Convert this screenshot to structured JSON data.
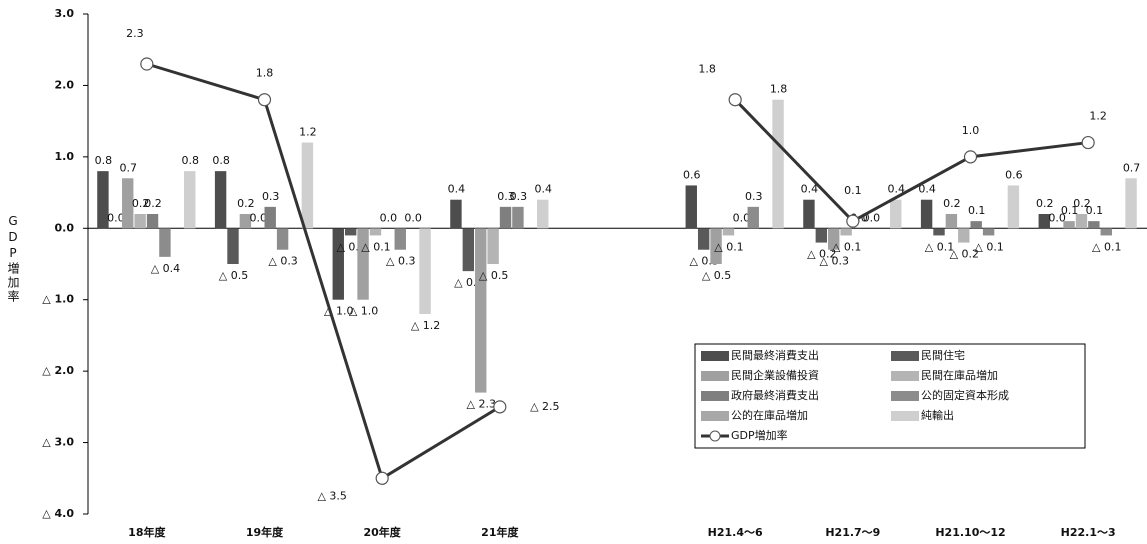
{
  "chart_data": {
    "type": "bar",
    "categories": [
      "18年度",
      "19年度",
      "20年度",
      "21年度",
      null,
      "H21.4～6",
      "H21.7～9",
      "H21.10～12",
      "H22.1～3"
    ],
    "y_label": "GDP増加率",
    "ylim": [
      -4,
      3
    ],
    "yticks": [
      {
        "value": 3,
        "label": "3.0"
      },
      {
        "value": 2,
        "label": "2.0"
      },
      {
        "value": 1,
        "label": "1.0"
      },
      {
        "value": 0,
        "label": "0.0"
      },
      {
        "value": -1,
        "label": "△ 1.0"
      },
      {
        "value": -2,
        "label": "△ 2.0"
      },
      {
        "value": -3,
        "label": "△ 3.0"
      },
      {
        "value": -4,
        "label": "△ 4.0"
      }
    ],
    "series": [
      {
        "name": "民間最終消費支出",
        "color": "#4d4d4d",
        "values": [
          0.8,
          0.8,
          -1.0,
          0.4,
          null,
          0.6,
          0.4,
          0.4,
          0.2
        ],
        "value_labels": [
          "0.8",
          "0.8",
          "△ 1.0",
          "0.4",
          null,
          "0.6",
          "0.4",
          "0.4",
          "0.2"
        ]
      },
      {
        "name": "民間住宅",
        "color": "#5a5a5a",
        "values": [
          0.0,
          -0.5,
          -0.1,
          -0.6,
          null,
          -0.3,
          -0.2,
          -0.1,
          0.0
        ],
        "value_labels": [
          "0.0",
          "△ 0.5",
          "△ 0.1",
          "△ 0.6",
          null,
          "△ 0.3",
          "△ 0.2",
          "△ 0.1",
          "0.0"
        ]
      },
      {
        "name": "民間企業設備投資",
        "color": "#a0a0a0",
        "values": [
          0.7,
          0.2,
          -1.0,
          -2.3,
          null,
          -0.5,
          -0.3,
          0.2,
          0.1
        ],
        "value_labels": [
          "0.7",
          "0.2",
          "△ 1.0",
          "△ 2.3",
          null,
          "△ 0.5",
          "△ 0.3",
          "0.2",
          "0.1"
        ]
      },
      {
        "name": "民間在庫品増加",
        "color": "#b4b4b4",
        "values": [
          0.2,
          0.0,
          -0.1,
          -0.5,
          null,
          -0.1,
          -0.1,
          -0.2,
          0.2
        ],
        "value_labels": [
          "0.2",
          "0.0",
          "△ 0.1",
          "△ 0.5",
          null,
          "△ 0.1",
          "△ 0.1",
          "△ 0.2",
          "0.2"
        ]
      },
      {
        "name": "政府最終消費支出",
        "color": "#7f7f7f",
        "values": [
          0.2,
          0.3,
          0.0,
          0.3,
          null,
          0.0,
          0.0,
          0.1,
          0.1
        ],
        "value_labels": [
          "0.2",
          "0.3",
          "0.0",
          "0.3",
          null,
          "0.0",
          "0.0",
          "0.1",
          "0.1"
        ]
      },
      {
        "name": "公的固定資本形成",
        "color": "#8c8c8c",
        "values": [
          -0.4,
          -0.3,
          -0.3,
          0.3,
          null,
          0.3,
          0.0,
          -0.1,
          -0.1
        ],
        "value_labels": [
          "△ 0.4",
          "△ 0.3",
          "△ 0.3",
          "0.3",
          null,
          "0.3",
          "0.0",
          "△ 0.1",
          "△ 0.1"
        ]
      },
      {
        "name": "公的在庫品増加",
        "color": "#a8a8a8",
        "values": [
          null,
          null,
          0.0,
          null,
          null,
          null,
          null,
          null,
          null
        ],
        "value_labels": [
          null,
          null,
          "0.0",
          null,
          null,
          null,
          null,
          null,
          null
        ]
      },
      {
        "name": "純輸出",
        "color": "#cfcfcf",
        "values": [
          0.8,
          1.2,
          -1.2,
          0.4,
          null,
          1.8,
          0.4,
          0.6,
          0.7
        ],
        "value_labels": [
          "0.8",
          "1.2",
          "△ 1.2",
          "0.4",
          null,
          "1.8",
          "0.4",
          "0.6",
          "0.7"
        ]
      },
      {
        "name": "GDP増加率",
        "type": "line",
        "color": "#333333",
        "values": [
          2.3,
          1.8,
          -3.5,
          -2.5,
          null,
          1.8,
          0.1,
          1.0,
          1.2
        ],
        "value_labels": [
          "2.3",
          "1.8",
          "△ 3.5",
          "△ 2.5",
          null,
          "1.8",
          "0.1",
          "1.0",
          "1.2"
        ]
      }
    ]
  }
}
